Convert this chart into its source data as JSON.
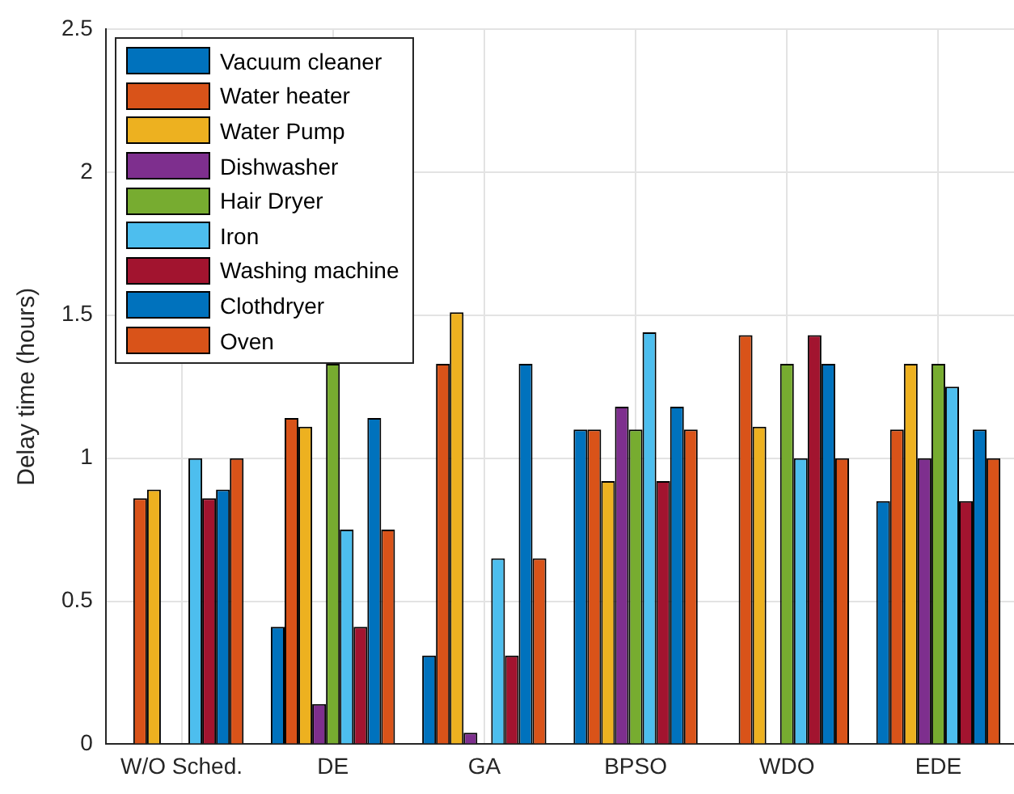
{
  "chart_data": {
    "type": "bar",
    "ylabel": "Delay time (hours)",
    "categories": [
      "W/O Sched.",
      "DE",
      "GA",
      "BPSO",
      "WDO",
      "EDE"
    ],
    "series": [
      {
        "name": "Vacuum cleaner",
        "color": "#0072bd",
        "values": [
          0,
          0.41,
          0.31,
          1.1,
          0,
          0.85
        ]
      },
      {
        "name": "Water heater",
        "color": "#d95319",
        "values": [
          0.86,
          1.14,
          1.33,
          1.1,
          1.43,
          1.1
        ]
      },
      {
        "name": "Water Pump",
        "color": "#edb120",
        "values": [
          0.89,
          1.11,
          1.51,
          0.92,
          1.11,
          1.33
        ]
      },
      {
        "name": "Dishwasher",
        "color": "#7e2f8e",
        "values": [
          0,
          0.14,
          0.04,
          1.18,
          0,
          1.0
        ]
      },
      {
        "name": "Hair Dryer",
        "color": "#77ac30",
        "values": [
          0,
          1.33,
          0,
          1.1,
          1.33,
          1.33
        ]
      },
      {
        "name": "Iron",
        "color": "#4dbeee",
        "values": [
          1.0,
          0.75,
          0.65,
          1.44,
          1.0,
          1.25
        ]
      },
      {
        "name": "Washing machine",
        "color": "#a2142f",
        "values": [
          0.86,
          0.41,
          0.31,
          0.92,
          1.43,
          0.85
        ]
      },
      {
        "name": "Clothdryer",
        "color": "#0072bd",
        "values": [
          0.89,
          1.14,
          1.33,
          1.18,
          1.33,
          1.1
        ]
      },
      {
        "name": "Oven",
        "color": "#d95319",
        "values": [
          1.0,
          0.75,
          0.65,
          1.1,
          1.0,
          1.0
        ]
      }
    ],
    "ylim": [
      0,
      2.5
    ],
    "yticks": [
      0,
      0.5,
      1,
      1.5,
      2,
      2.5
    ],
    "grid": true,
    "legend": "top left"
  }
}
